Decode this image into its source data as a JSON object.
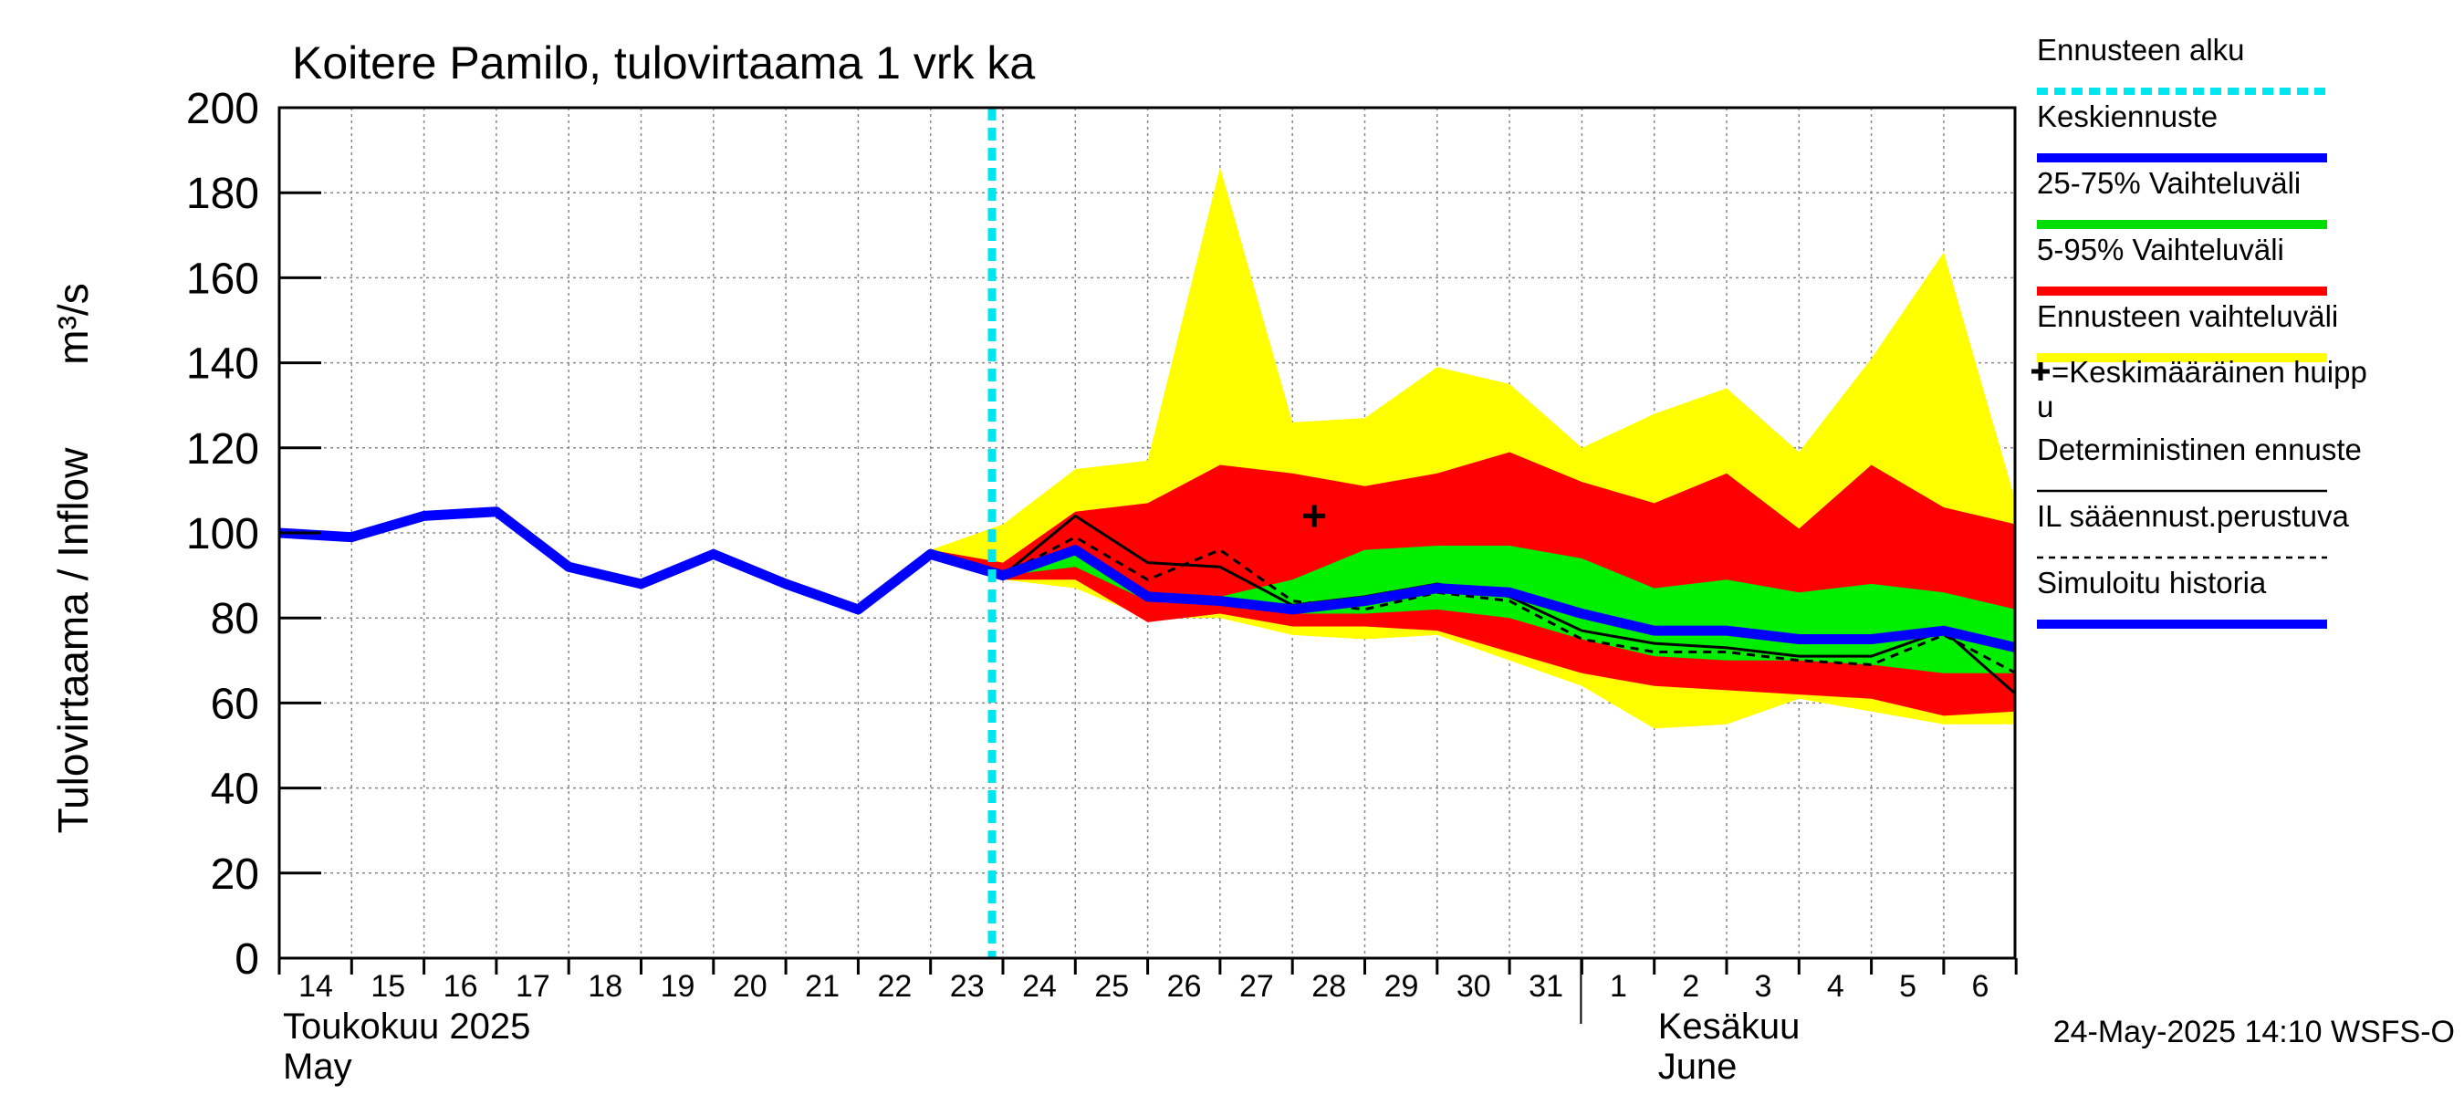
{
  "chart_data": {
    "type": "area",
    "title": "Koitere Pamilo, tulovirtaama 1 vrk ka",
    "ylabel": "Tulovirtaama / Inflow",
    "yunit": "m³/s",
    "ylim": [
      0,
      200
    ],
    "yticks": [
      0,
      20,
      40,
      60,
      80,
      100,
      120,
      140,
      160,
      180,
      200
    ],
    "grid": true,
    "legend_placement": "right",
    "x_dates": [
      "2025-05-14",
      "2025-05-15",
      "2025-05-16",
      "2025-05-17",
      "2025-05-18",
      "2025-05-19",
      "2025-05-20",
      "2025-05-21",
      "2025-05-22",
      "2025-05-23",
      "2025-05-24",
      "2025-05-25",
      "2025-05-26",
      "2025-05-27",
      "2025-05-28",
      "2025-05-29",
      "2025-05-30",
      "2025-05-31",
      "2025-06-01",
      "2025-06-02",
      "2025-06-03",
      "2025-06-04",
      "2025-06-05",
      "2025-06-06",
      "2025-06-07"
    ],
    "day_labels": [
      "14",
      "15",
      "16",
      "17",
      "18",
      "19",
      "20",
      "21",
      "22",
      "23",
      "24",
      "25",
      "26",
      "27",
      "28",
      "29",
      "30",
      "31",
      "1",
      "2",
      "3",
      "4",
      "5",
      "6"
    ],
    "month_labels": [
      {
        "line1": "Toukokuu  2025",
        "line2": "May",
        "date": "2025-05-14"
      },
      {
        "line1": "Kesäkuu",
        "line2": "June",
        "date": "2025-06-02"
      }
    ],
    "forecast_start": "2025-05-24",
    "simulated_history": {
      "x": [
        "2025-05-14",
        "2025-05-15",
        "2025-05-16",
        "2025-05-17",
        "2025-05-18",
        "2025-05-19",
        "2025-05-20",
        "2025-05-21",
        "2025-05-22",
        "2025-05-23",
        "2025-05-24"
      ],
      "y": [
        100,
        99,
        104,
        105,
        92,
        88,
        95,
        88,
        82,
        95,
        90
      ]
    },
    "forecast_x": [
      "2025-05-23",
      "2025-05-24",
      "2025-05-25",
      "2025-05-26",
      "2025-05-27",
      "2025-05-28",
      "2025-05-29",
      "2025-05-30",
      "2025-05-31",
      "2025-06-01",
      "2025-06-02",
      "2025-06-03",
      "2025-06-04",
      "2025-06-05",
      "2025-06-06",
      "2025-06-07"
    ],
    "ensemble_range": {
      "upper": [
        96,
        102,
        115,
        117,
        186,
        126,
        127,
        139,
        135,
        120,
        128,
        134,
        119,
        141,
        166,
        107
      ],
      "lower": [
        95,
        89,
        87,
        80,
        80,
        76,
        75,
        76,
        70,
        64,
        54,
        55,
        61,
        58,
        55,
        55
      ]
    },
    "range_5_95": {
      "upper": [
        96,
        93,
        105,
        107,
        116,
        114,
        111,
        114,
        119,
        112,
        107,
        114,
        101,
        116,
        106,
        102
      ],
      "lower": [
        95,
        89,
        89,
        79,
        81,
        78,
        78,
        77,
        72,
        67,
        64,
        63,
        62,
        61,
        57,
        58
      ]
    },
    "range_25_75": {
      "upper": [
        95,
        91,
        97,
        86,
        85,
        89,
        96,
        97,
        97,
        94,
        87,
        89,
        86,
        88,
        86,
        82
      ],
      "lower": [
        95,
        90,
        92,
        84,
        83,
        81,
        81,
        82,
        80,
        75,
        71,
        70,
        70,
        69,
        67,
        67
      ]
    },
    "median_forecast": [
      95,
      90,
      96,
      85,
      84,
      82,
      84,
      87,
      86,
      81,
      77,
      77,
      75,
      75,
      77,
      73
    ],
    "deterministic_forecast": [
      95,
      90,
      104,
      93,
      92,
      83,
      85,
      88,
      85,
      77,
      74,
      73,
      71,
      71,
      77,
      62
    ],
    "il_weather_forecast": [
      95,
      90,
      99,
      89,
      96,
      84,
      82,
      86,
      84,
      75,
      72,
      72,
      70,
      69,
      76,
      67
    ],
    "mean_peak": {
      "x": "2025-05-28",
      "y": 104
    },
    "legend": [
      {
        "label": "Ennusteen alku",
        "style": "dotted",
        "color": "#00e5ee"
      },
      {
        "label": "Keskiennuste",
        "style": "line",
        "color": "#0000ff"
      },
      {
        "label": "25-75% Vaihteluväli",
        "style": "line",
        "color": "#00dd00"
      },
      {
        "label": "5-95% Vaihteluväli",
        "style": "line",
        "color": "#ff0000"
      },
      {
        "label": "Ennusteen vaihteluväli",
        "style": "line",
        "color": "#ffff00"
      },
      {
        "label": "=Keskimääräinen huipp",
        "label2": "u",
        "style": "plus",
        "color": "#000000"
      },
      {
        "label": "Deterministinen ennuste",
        "style": "thin",
        "color": "#000000"
      },
      {
        "label": "IL sääennust.perustuva",
        "style": "dashed",
        "color": "#000000"
      },
      {
        "label": "Simuloitu historia",
        "style": "line",
        "color": "#0000ff"
      }
    ],
    "footer": "24-May-2025 14:10 WSFS-O"
  }
}
